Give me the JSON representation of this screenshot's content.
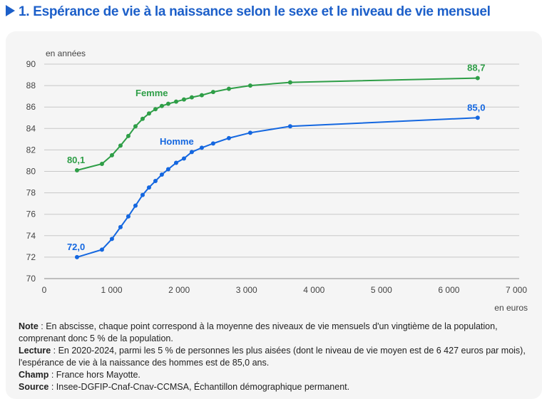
{
  "title": "1. Espérance de vie à la naissance selon le sexe et le niveau de vie mensuel",
  "chart_data": {
    "type": "line",
    "title": "1. Espérance de vie à la naissance selon le sexe et le niveau de vie mensuel",
    "ylabel": "en années",
    "xlabel": "en euros",
    "xlim": [
      0,
      7000
    ],
    "ylim": [
      70,
      90
    ],
    "xticks": [
      0,
      1000,
      2000,
      3000,
      4000,
      5000,
      6000,
      7000
    ],
    "xtick_labels": [
      "0",
      "1 000",
      "2 000",
      "3 000",
      "4 000",
      "5 000",
      "6 000",
      "7 000"
    ],
    "yticks": [
      70,
      72,
      74,
      76,
      78,
      80,
      82,
      84,
      86,
      88,
      90
    ],
    "grid": true,
    "series": [
      {
        "name": "Femme",
        "color": "#2e9e47",
        "x": [
          486,
          856,
          1004,
          1131,
          1247,
          1353,
          1459,
          1554,
          1649,
          1744,
          1839,
          1956,
          2072,
          2188,
          2336,
          2505,
          2738,
          3055,
          3647,
          6427
        ],
        "y": [
          80.1,
          80.7,
          81.5,
          82.4,
          83.3,
          84.2,
          84.9,
          85.4,
          85.8,
          86.1,
          86.3,
          86.5,
          86.7,
          86.9,
          87.1,
          87.4,
          87.7,
          88.0,
          88.3,
          88.7
        ],
        "first_label": "80,1",
        "last_label": "88,7"
      },
      {
        "name": "Homme",
        "color": "#1467e0",
        "x": [
          486,
          856,
          1004,
          1131,
          1247,
          1353,
          1459,
          1554,
          1649,
          1744,
          1839,
          1956,
          2072,
          2188,
          2336,
          2505,
          2738,
          3055,
          3647,
          6427
        ],
        "y": [
          72.0,
          72.7,
          73.7,
          74.8,
          75.8,
          76.8,
          77.8,
          78.5,
          79.1,
          79.7,
          80.2,
          80.8,
          81.2,
          81.8,
          82.2,
          82.6,
          83.1,
          83.6,
          84.2,
          85.0
        ],
        "first_label": "72,0",
        "last_label": "85,0"
      }
    ]
  },
  "notes": [
    {
      "label": "Note",
      "text": " : En abscisse, chaque point correspond à la moyenne des niveaux de vie mensuels d'un vingtième de la population, comprenant donc 5 % de la population."
    },
    {
      "label": "Lecture",
      "text": " : En 2020-2024, parmi les 5 % de personnes les plus aisées (dont le niveau de vie moyen est de 6 427 euros par mois), l'espérance de vie à la naissance des hommes est de 85,0 ans."
    },
    {
      "label": "Champ",
      "text": " : France hors Mayotte."
    },
    {
      "label": "Source",
      "text": " : Insee-DGFIP-Cnaf-Cnav-CCMSA, Échantillon démographique permanent."
    }
  ]
}
